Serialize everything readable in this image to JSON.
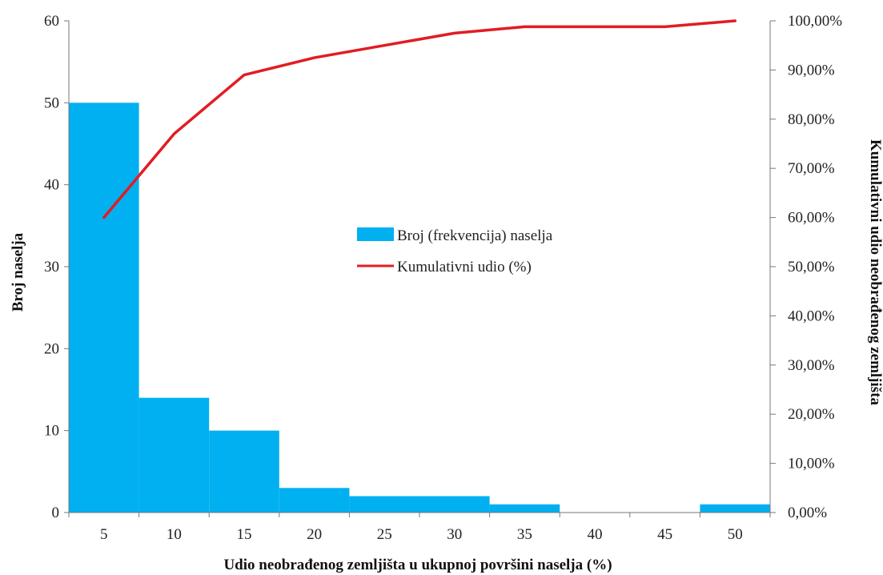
{
  "chart_data": {
    "type": "bar",
    "categories": [
      "5",
      "10",
      "15",
      "20",
      "25",
      "30",
      "35",
      "40",
      "45",
      "50"
    ],
    "series": [
      {
        "name": "Broj (frekvencija) naselja",
        "type": "bar",
        "axis": "left",
        "values": [
          50,
          14,
          10,
          3,
          2,
          2,
          1,
          0,
          0,
          1
        ]
      },
      {
        "name": "Kumulativni udio (%)",
        "type": "line",
        "axis": "right",
        "values": [
          60.0,
          77.0,
          89.0,
          92.5,
          95.0,
          97.5,
          98.8,
          98.8,
          98.8,
          100.0
        ]
      }
    ],
    "xlabel": "Udio neobrađenog zemljišta u ukupnoj površini naselja (%)",
    "ylabel": "Broj naselja",
    "y2label": "Kumulativni udio neobrađenog zemljišta",
    "ylim": [
      0,
      60
    ],
    "yticks": [
      "0",
      "10",
      "20",
      "30",
      "40",
      "50",
      "60"
    ],
    "y2lim": [
      0,
      100
    ],
    "y2ticks": [
      "0,00%",
      "10,00%",
      "20,00%",
      "30,00%",
      "40,00%",
      "50,00%",
      "60,00%",
      "70,00%",
      "80,00%",
      "90,00%",
      "100,00%"
    ],
    "legend_position": "center",
    "grid": false,
    "colors": {
      "bar": "#00b0f0",
      "line": "#e31b23"
    }
  }
}
